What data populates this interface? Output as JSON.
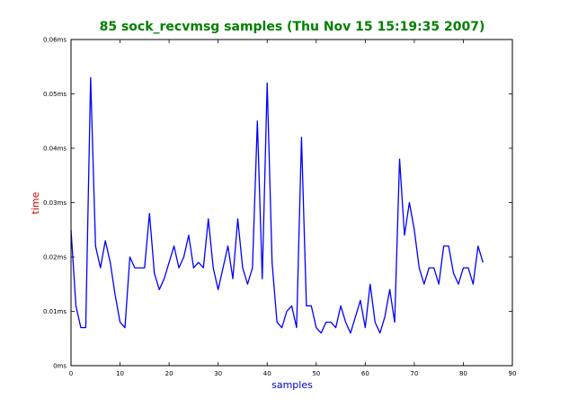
{
  "colors": {
    "title": "#008000",
    "xlabel": "#0000cc",
    "ylabel": "#cc0000",
    "series": "#0000ff",
    "axes": "#000000"
  },
  "chart_data": {
    "type": "line",
    "title": "85 sock_recvmsg samples (Thu Nov 15 15:19:35 2007)",
    "xlabel": "samples",
    "ylabel": "time",
    "xlim": [
      0,
      90
    ],
    "ylim": [
      0,
      0.06
    ],
    "x_ticks": [
      0,
      10,
      20,
      30,
      40,
      50,
      60,
      70,
      80,
      90
    ],
    "y_ticks": [
      {
        "value": 0.0,
        "label": "0ms"
      },
      {
        "value": 0.01,
        "label": "0.01ms"
      },
      {
        "value": 0.02,
        "label": "0.02ms"
      },
      {
        "value": 0.03,
        "label": "0.03ms"
      },
      {
        "value": 0.04,
        "label": "0.04ms"
      },
      {
        "value": 0.05,
        "label": "0.05ms"
      },
      {
        "value": 0.06,
        "label": "0.06ms"
      }
    ],
    "grid": false,
    "series": [
      {
        "x": [
          0,
          1,
          2,
          3,
          4,
          5,
          6,
          7,
          8,
          9,
          10,
          11,
          12,
          13,
          14,
          15,
          16,
          17,
          18,
          19,
          20,
          21,
          22,
          23,
          24,
          25,
          26,
          27,
          28,
          29,
          30,
          31,
          32,
          33,
          34,
          35,
          36,
          37,
          38,
          39,
          40,
          41,
          42,
          43,
          44,
          45,
          46,
          47,
          48,
          49,
          50,
          51,
          52,
          53,
          54,
          55,
          56,
          57,
          58,
          59,
          60,
          61,
          62,
          63,
          64,
          65,
          66,
          67,
          68,
          69,
          70,
          71,
          72,
          73,
          74,
          75,
          76,
          77,
          78,
          79,
          80,
          81,
          82,
          83,
          84
        ],
        "values": [
          0.025,
          0.011,
          0.007,
          0.007,
          0.053,
          0.022,
          0.018,
          0.023,
          0.019,
          0.013,
          0.008,
          0.007,
          0.02,
          0.018,
          0.018,
          0.018,
          0.028,
          0.017,
          0.014,
          0.016,
          0.019,
          0.022,
          0.018,
          0.02,
          0.024,
          0.018,
          0.019,
          0.018,
          0.027,
          0.018,
          0.014,
          0.018,
          0.022,
          0.016,
          0.027,
          0.018,
          0.015,
          0.018,
          0.045,
          0.016,
          0.052,
          0.019,
          0.008,
          0.007,
          0.01,
          0.011,
          0.007,
          0.042,
          0.011,
          0.011,
          0.007,
          0.006,
          0.008,
          0.008,
          0.007,
          0.011,
          0.008,
          0.006,
          0.009,
          0.012,
          0.007,
          0.015,
          0.008,
          0.006,
          0.009,
          0.014,
          0.008,
          0.038,
          0.024,
          0.03,
          0.025,
          0.018,
          0.015,
          0.018,
          0.018,
          0.015,
          0.022,
          0.022,
          0.017,
          0.015,
          0.018,
          0.018,
          0.015,
          0.022,
          0.019
        ]
      }
    ]
  }
}
